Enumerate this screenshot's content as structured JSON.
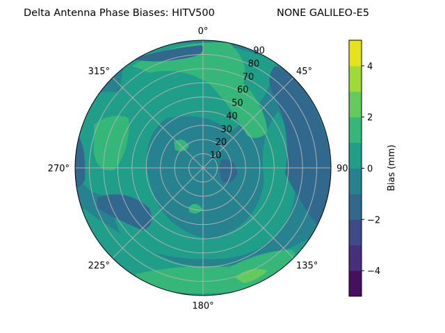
{
  "chart_data": {
    "type": "contour",
    "projection": "polar",
    "title_left": "Delta Antenna Phase Biases: HITV500",
    "title_right": "NONE GALILEO-E5",
    "angular_ticks": [
      "0°",
      "45°",
      "90",
      "135°",
      "180°",
      "225°",
      "270°",
      "315°"
    ],
    "radial_ticks": [
      "10",
      "20",
      "30",
      "40",
      "50",
      "60",
      "70",
      "80",
      "90"
    ],
    "radial_range": [
      0,
      90
    ],
    "grid": true,
    "colorbar": {
      "label": "Bias (mm)",
      "range": [
        -5,
        5
      ],
      "levels": [
        -5,
        -4,
        -3,
        -2,
        -1,
        0,
        1,
        2,
        3,
        4,
        5
      ],
      "ticks": [
        "−4",
        "−2",
        "0",
        "2",
        "4"
      ],
      "tick_values": [
        -4,
        -2,
        0,
        2,
        4
      ],
      "colors": [
        "#46105f",
        "#472f7d",
        "#3e4a89",
        "#31688e",
        "#26828e",
        "#1f9e89",
        "#35b779",
        "#62cb5c",
        "#a0da39",
        "#e5e419"
      ]
    },
    "dominant_range": [
      -2,
      2
    ]
  }
}
